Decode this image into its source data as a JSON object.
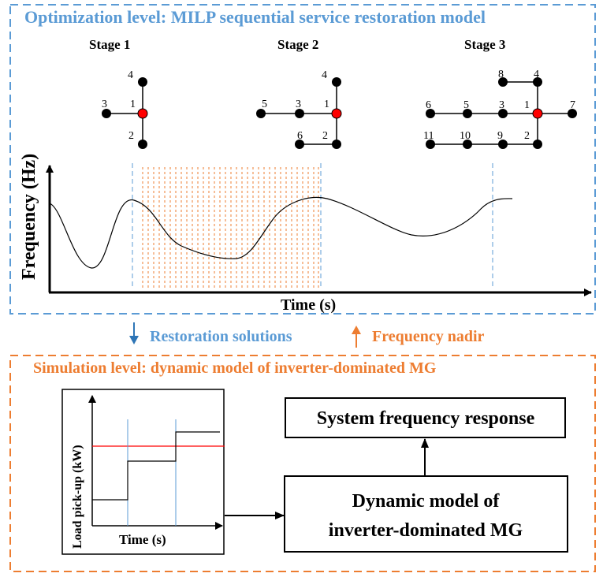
{
  "optimization": {
    "title": "Optimization level: MILP sequential service restoration model",
    "color": "#5b9bd5"
  },
  "stages": {
    "stage1": {
      "label": "Stage 1",
      "nodes": [
        "1",
        "2",
        "3",
        "4"
      ]
    },
    "stage2": {
      "label": "Stage 2",
      "nodes": [
        "1",
        "2",
        "3",
        "4",
        "5",
        "6"
      ]
    },
    "stage3": {
      "label": "Stage 3",
      "nodes": [
        "1",
        "2",
        "3",
        "4",
        "5",
        "6",
        "7",
        "8",
        "9",
        "10",
        "11"
      ]
    },
    "root_node_color": "#ff0000",
    "node_color": "#000000"
  },
  "frequency_plot": {
    "ylabel": "Frequency (Hz)",
    "xlabel": "Time (s)"
  },
  "flow": {
    "down_label": "Restoration solutions",
    "down_color": "#2e75b6",
    "up_label": "Frequency nadir",
    "up_color": "#ed7d31"
  },
  "simulation": {
    "title": "Simulation level: dynamic model of inverter-dominated MG",
    "color": "#ed7d31",
    "load_plot": {
      "ylabel": "Load pick-up (kW)",
      "xlabel": "Time (s)",
      "limit_color": "#ff0000",
      "stage_line_color": "#5b9bd5"
    },
    "boxes": {
      "frequency_response": "System frequency response",
      "dynamic_model_line1": "Dynamic model of",
      "dynamic_model_line2": "inverter-dominated MG"
    }
  }
}
